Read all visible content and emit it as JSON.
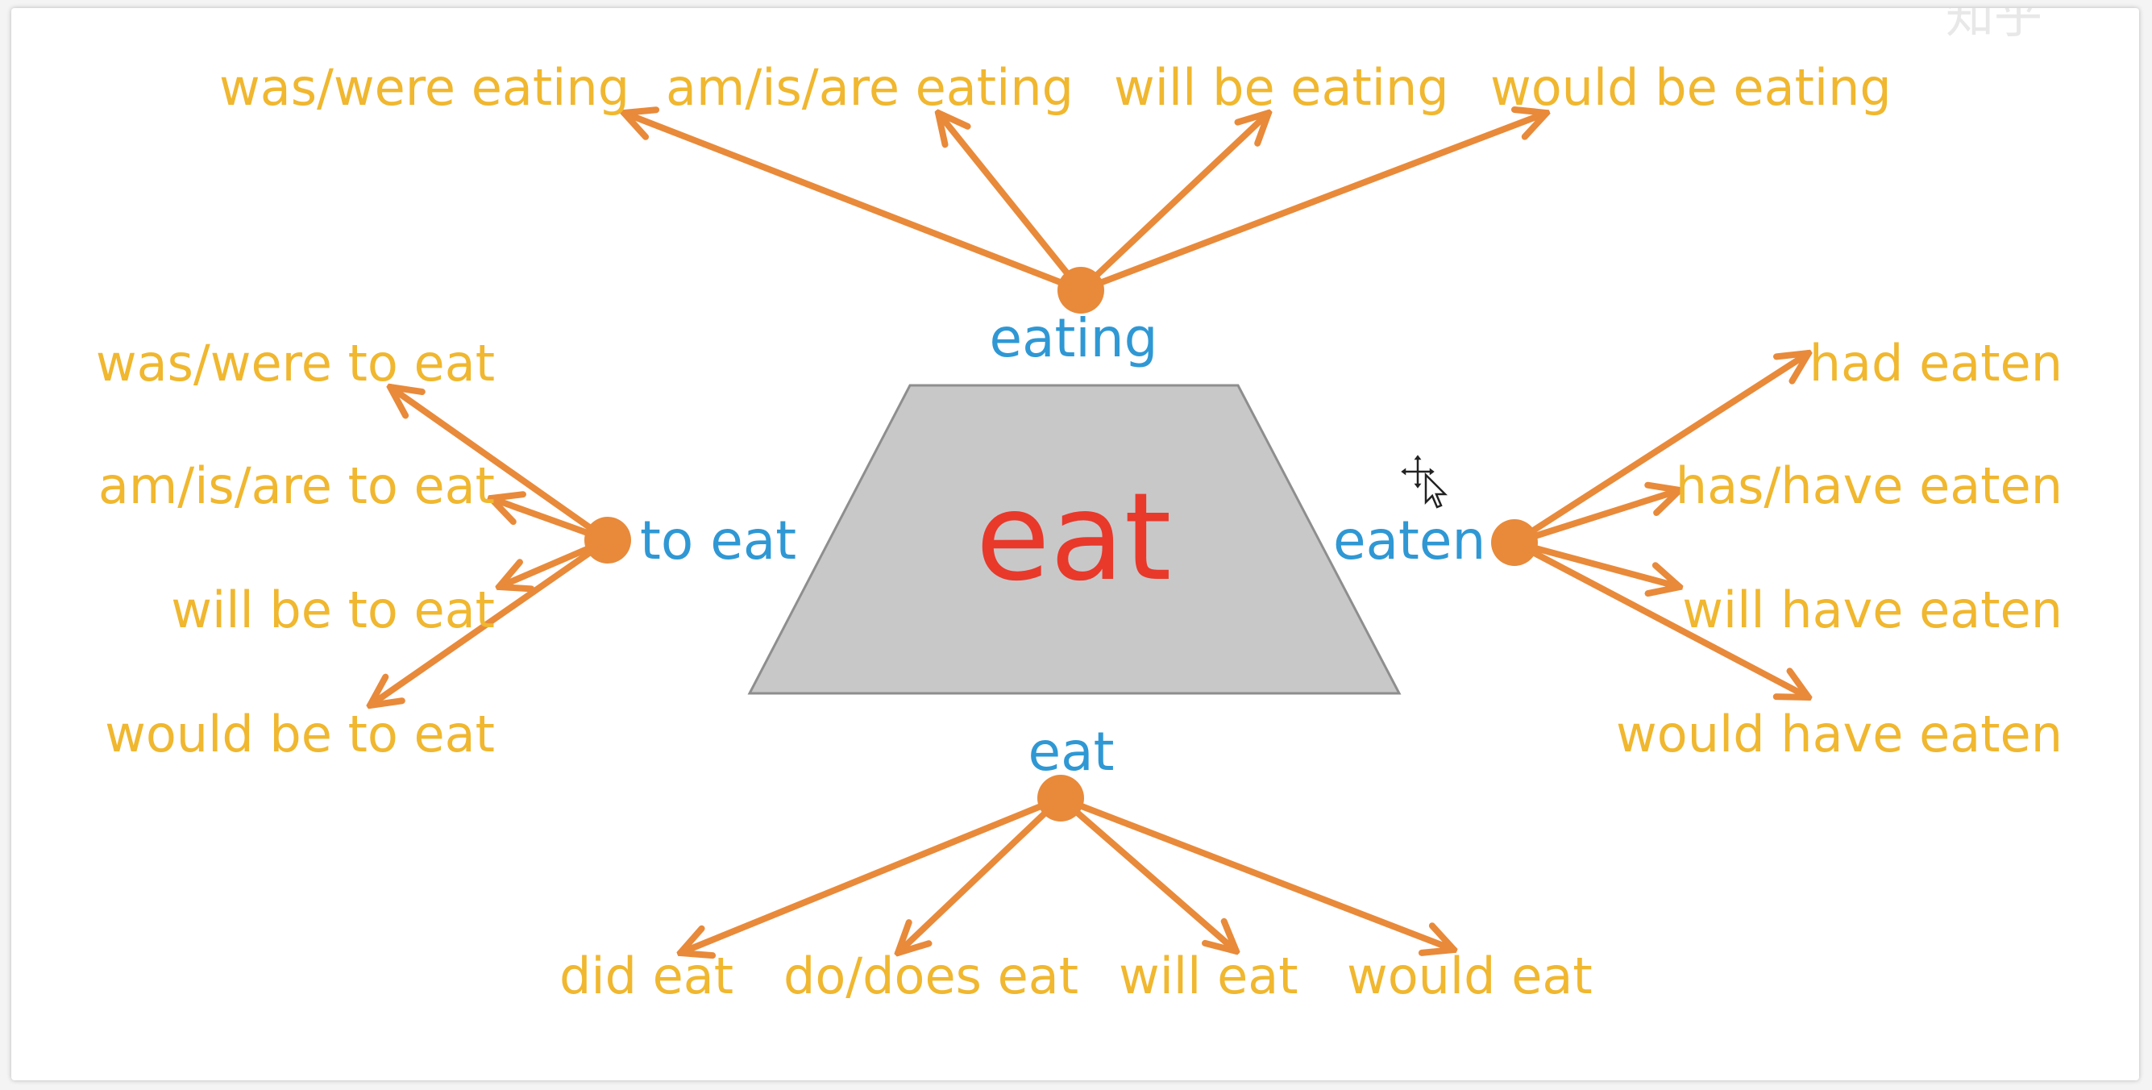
{
  "center": {
    "word": "eat"
  },
  "forms": {
    "ing": "eating",
    "to_inf": "to eat",
    "pp": "eaten",
    "base": "eat"
  },
  "top_branches": [
    "was/were eating",
    "am/is/are eating",
    "will be eating",
    "would be eating"
  ],
  "left_branches": [
    "was/were to eat",
    "am/is/are to eat",
    "will be to eat",
    "would be to eat"
  ],
  "right_branches": [
    "had eaten",
    "has/have eaten",
    "will have eaten",
    "would have eaten"
  ],
  "bottom_branches": [
    "did eat",
    "do/does eat",
    "will eat",
    "would eat"
  ],
  "colors": {
    "branch_text": "#f0b72f",
    "form_text": "#2f98d4",
    "center_text": "#e8392b",
    "arrow": "#e88a3a",
    "trapezoid": "#c8c8c9"
  },
  "icons": {
    "cursor": "move-cursor-icon"
  },
  "watermark": "知乎"
}
